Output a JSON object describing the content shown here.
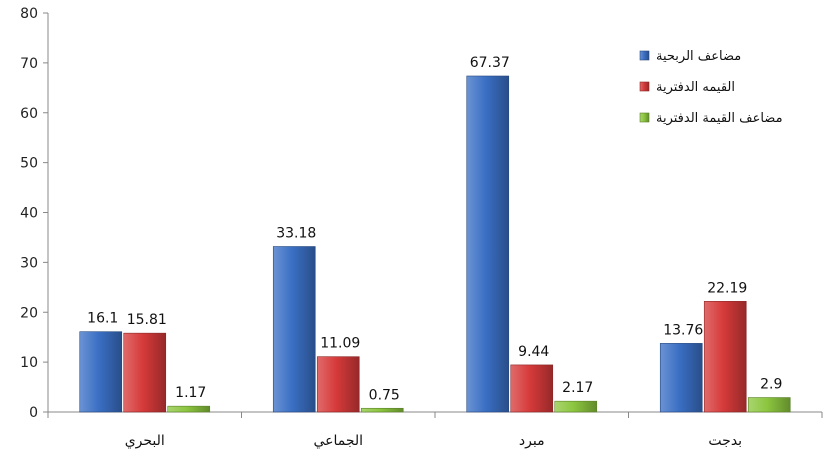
{
  "chart_data": {
    "type": "bar",
    "categories": [
      "البحري",
      "الجماعي",
      "مبرد",
      "بدجت"
    ],
    "series": [
      {
        "name": "مضاعف الربحية",
        "values": [
          16.1,
          33.18,
          67.37,
          13.76
        ],
        "labels": [
          "16.1",
          "33.18",
          "67.37",
          "13.76"
        ],
        "color": "#3a6fc4"
      },
      {
        "name": "القيمه الدفترية",
        "values": [
          15.81,
          11.09,
          9.44,
          22.19
        ],
        "labels": [
          "15.81",
          "11.09",
          "9.44",
          "22.19"
        ],
        "color": "#d63a3a"
      },
      {
        "name": "مضاعف القيمة الدفترية",
        "values": [
          1.17,
          0.75,
          2.17,
          2.9
        ],
        "labels": [
          "1.17",
          "0.75",
          "2.17",
          "2.9"
        ],
        "color": "#8cc63f"
      }
    ],
    "yticks": [
      "0",
      "10",
      "20",
      "30",
      "40",
      "50",
      "60",
      "70",
      "80"
    ],
    "ylim": [
      0,
      80
    ],
    "grid": false,
    "legend_position": "top-right"
  }
}
